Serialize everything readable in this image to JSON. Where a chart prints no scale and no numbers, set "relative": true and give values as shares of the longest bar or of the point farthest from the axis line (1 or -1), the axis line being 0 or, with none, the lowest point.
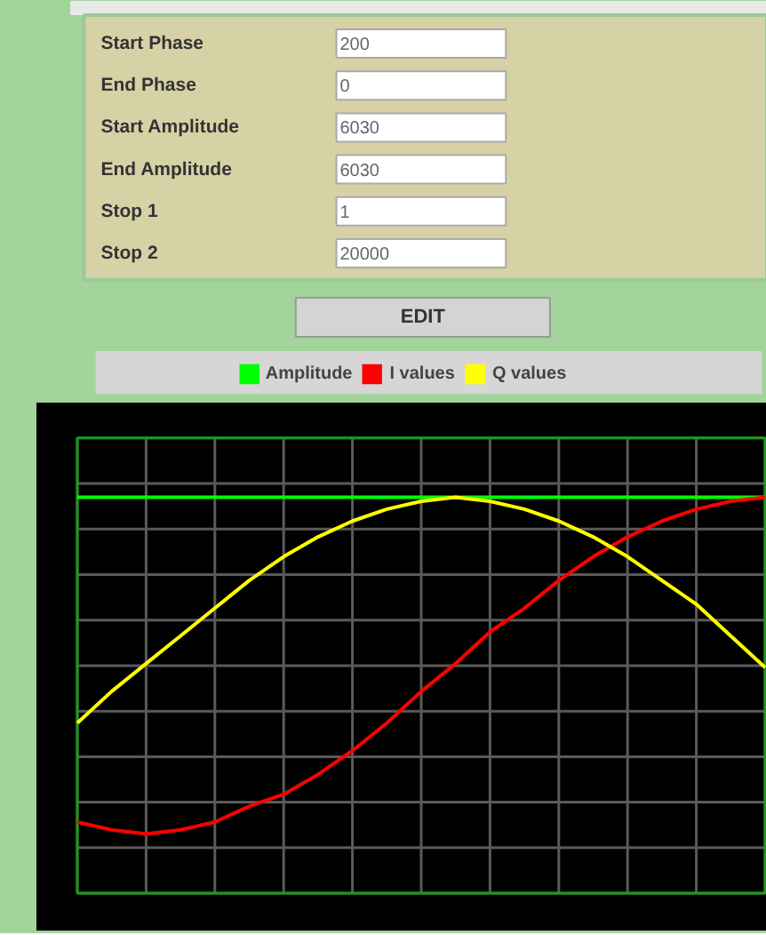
{
  "chart_data": [
    {
      "type": "other",
      "annotations": [
        "Start Phase",
        "200",
        "End Phase",
        "0",
        "Start Amplitude",
        "6030",
        "End Amplitude",
        "6030",
        "Stop 1",
        "1",
        "Stop 2",
        "20000",
        "EDIT"
      ]
    },
    {
      "type": "line",
      "relative": true,
      "grid": true,
      "legend": "top",
      "categories": [
        null,
        null,
        null,
        null,
        null,
        null,
        null,
        null,
        null,
        null,
        null,
        null,
        null,
        null,
        null,
        null,
        null,
        null,
        null,
        null,
        null
      ],
      "series": [
        {
          "name": "Amplitude",
          "color": "#00ff00",
          "values": [
            1,
            1,
            1,
            1,
            1,
            1,
            1,
            1,
            1,
            1,
            1,
            1,
            1,
            1,
            1,
            1,
            1,
            1,
            1,
            1,
            1
          ]
        },
        {
          "name": "I values",
          "color": "#ff0000",
          "values": [
            0.18,
            0.16,
            0.15,
            0.16,
            0.18,
            0.22,
            0.25,
            0.3,
            0.36,
            0.43,
            0.51,
            0.58,
            0.66,
            0.72,
            0.79,
            0.85,
            0.9,
            0.94,
            0.97,
            0.99,
            1
          ]
        },
        {
          "name": "Q values",
          "color": "#ffff00",
          "values": [
            0.43,
            0.51,
            0.58,
            0.65,
            0.72,
            0.79,
            0.85,
            0.9,
            0.94,
            0.97,
            0.99,
            1,
            0.99,
            0.97,
            0.94,
            0.9,
            0.85,
            0.79,
            0.73,
            0.65,
            0.57
          ]
        }
      ]
    }
  ]
}
